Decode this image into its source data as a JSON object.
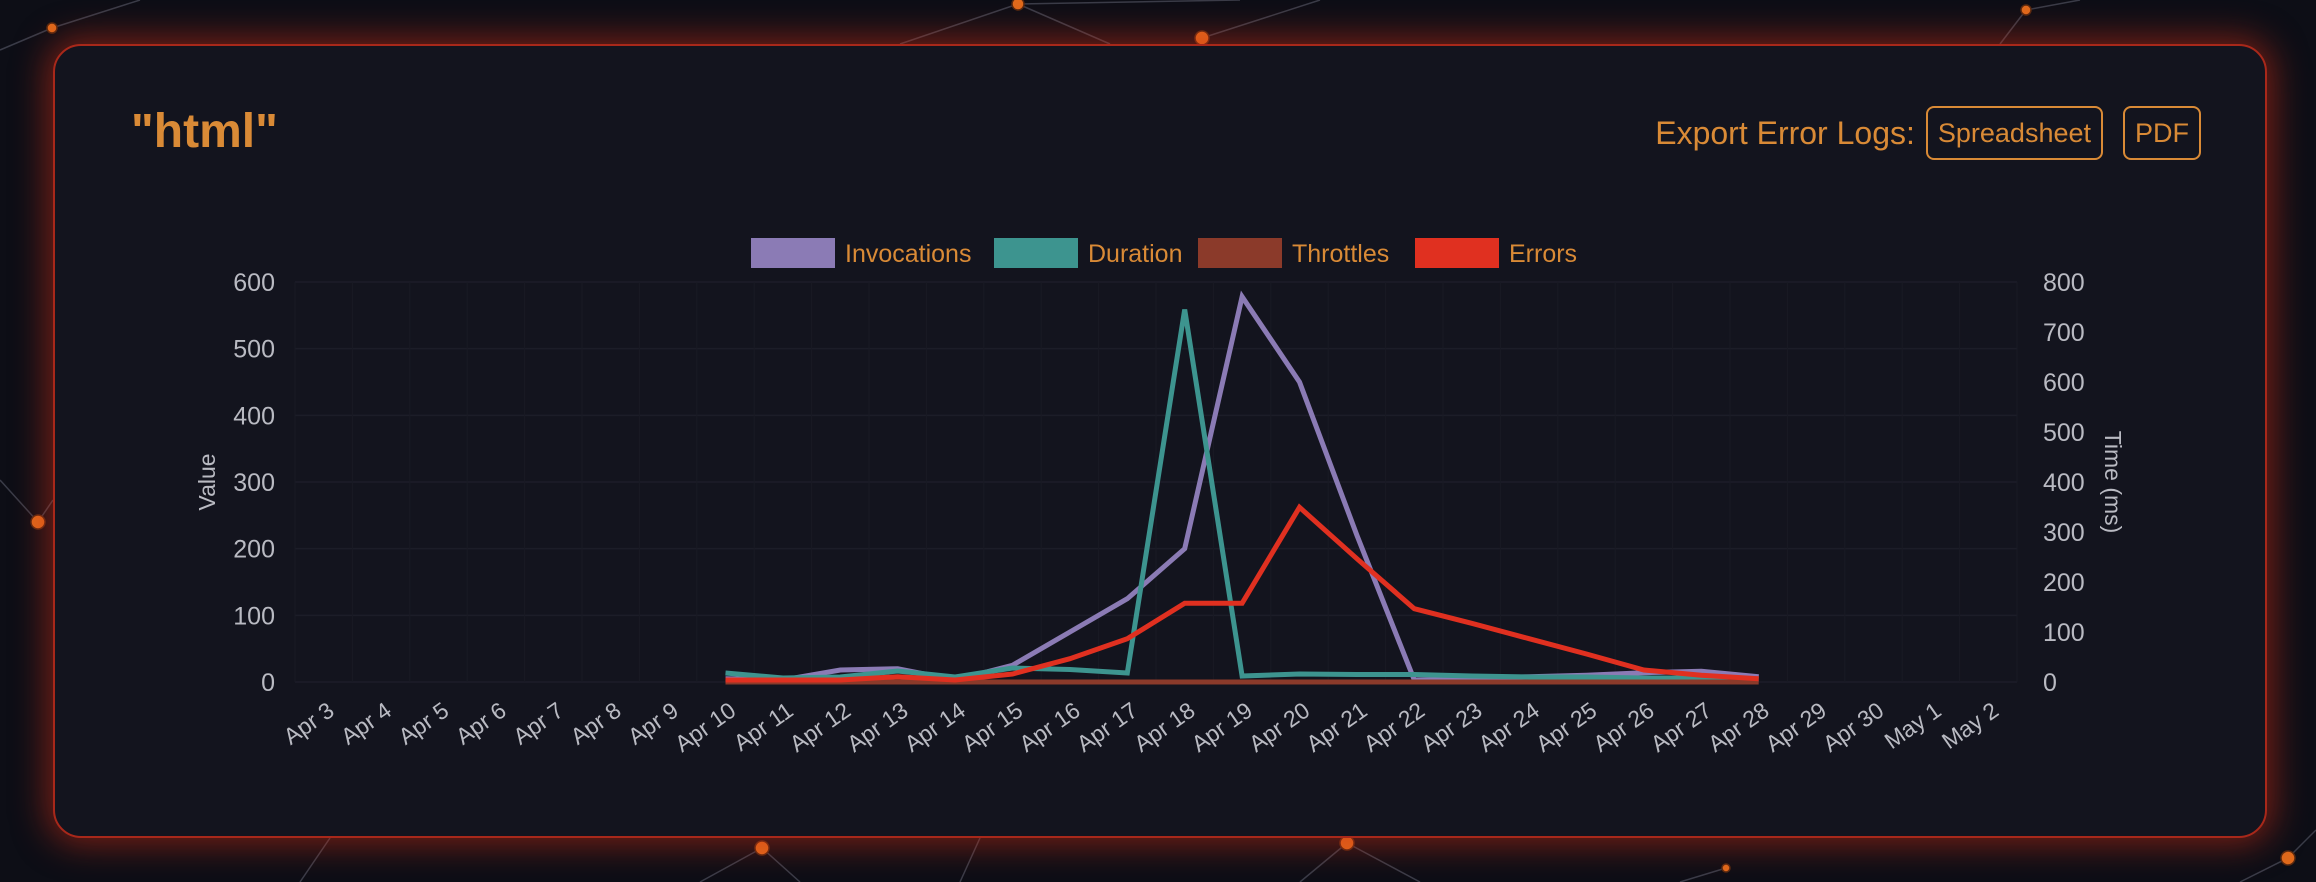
{
  "title": "\"html\"",
  "export": {
    "label": "Export Error Logs:",
    "buttons": [
      "Spreadsheet",
      "PDF"
    ]
  },
  "colors": {
    "accent": "#d98a36",
    "card_border": "#a8281a",
    "axis_text": "#b9bac2"
  },
  "chart_data": {
    "type": "line",
    "categories": [
      "Apr 3",
      "Apr 4",
      "Apr 5",
      "Apr 6",
      "Apr 7",
      "Apr 8",
      "Apr 9",
      "Apr 10",
      "Apr 11",
      "Apr 12",
      "Apr 13",
      "Apr 14",
      "Apr 15",
      "Apr 16",
      "Apr 17",
      "Apr 18",
      "Apr 19",
      "Apr 20",
      "Apr 21",
      "Apr 22",
      "Apr 23",
      "Apr 24",
      "Apr 25",
      "Apr 26",
      "Apr 27",
      "Apr 28",
      "Apr 29",
      "Apr 30",
      "May 1",
      "May 2"
    ],
    "y_left": {
      "label": "Value",
      "ticks": [
        0,
        100,
        200,
        300,
        400,
        500,
        600
      ],
      "range": [
        0,
        600
      ]
    },
    "y_right": {
      "label": "Time (ms)",
      "ticks": [
        0,
        100,
        200,
        300,
        400,
        500,
        600,
        700,
        800
      ],
      "range": [
        0,
        800
      ]
    },
    "legend_position": "top-center",
    "grid": true,
    "series": [
      {
        "name": "Invocations",
        "color": "#8b7bb5",
        "axis": "left",
        "values": [
          null,
          null,
          null,
          null,
          null,
          null,
          null,
          5,
          3,
          18,
          20,
          3,
          25,
          75,
          125,
          200,
          578,
          450,
          220,
          3,
          5,
          8,
          10,
          14,
          16,
          8,
          null,
          null,
          null,
          null
        ]
      },
      {
        "name": "Duration",
        "color": "#3d948f",
        "axis": "right",
        "values": [
          null,
          null,
          null,
          null,
          null,
          null,
          null,
          18,
          8,
          10,
          22,
          10,
          28,
          25,
          18,
          745,
          12,
          16,
          15,
          15,
          12,
          10,
          10,
          8,
          8,
          5,
          null,
          null,
          null,
          null
        ]
      },
      {
        "name": "Throttles",
        "color": "#8b3a2a",
        "axis": "left",
        "values": [
          null,
          null,
          null,
          null,
          null,
          null,
          null,
          0,
          0,
          0,
          0,
          0,
          0,
          0,
          0,
          0,
          0,
          0,
          0,
          0,
          0,
          0,
          0,
          0,
          0,
          0,
          null,
          null,
          null,
          null
        ]
      },
      {
        "name": "Errors",
        "color": "#e03020",
        "axis": "left",
        "values": [
          null,
          null,
          null,
          null,
          null,
          null,
          null,
          3,
          3,
          3,
          8,
          3,
          12,
          35,
          65,
          118,
          118,
          262,
          185,
          110,
          88,
          65,
          42,
          18,
          10,
          5,
          null,
          null,
          null,
          null
        ]
      }
    ]
  }
}
